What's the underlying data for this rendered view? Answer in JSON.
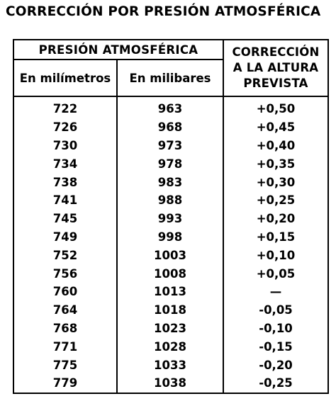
{
  "title": "CORRECCIÓN POR PRESIÓN ATMOSFÉRICA",
  "table": {
    "group_header": "PRESIÓN ATMOSFÉRICA",
    "correction_header": {
      "line1": "CORRECCIÓN",
      "line2": "A LA ALTURA",
      "line3": "PREVISTA"
    },
    "col_mm_header": "En milímetros",
    "col_mb_header": "En milibares",
    "rows": [
      {
        "mm": "722",
        "mb": "963",
        "corr": "+0,50"
      },
      {
        "mm": "726",
        "mb": "968",
        "corr": "+0,45"
      },
      {
        "mm": "730",
        "mb": "973",
        "corr": "+0,40"
      },
      {
        "mm": "734",
        "mb": "978",
        "corr": "+0,35"
      },
      {
        "mm": "738",
        "mb": "983",
        "corr": "+0,30"
      },
      {
        "mm": "741",
        "mb": "988",
        "corr": "+0,25"
      },
      {
        "mm": "745",
        "mb": "993",
        "corr": "+0,20"
      },
      {
        "mm": "749",
        "mb": "998",
        "corr": "+0,15"
      },
      {
        "mm": "752",
        "mb": "1003",
        "corr": "+0,10"
      },
      {
        "mm": "756",
        "mb": "1008",
        "corr": "+0,05"
      },
      {
        "mm": "760",
        "mb": "1013",
        "corr": "—"
      },
      {
        "mm": "764",
        "mb": "1018",
        "corr": "-0,05"
      },
      {
        "mm": "768",
        "mb": "1023",
        "corr": "-0,10"
      },
      {
        "mm": "771",
        "mb": "1028",
        "corr": "-0,15"
      },
      {
        "mm": "775",
        "mb": "1033",
        "corr": "-0,20"
      },
      {
        "mm": "779",
        "mb": "1038",
        "corr": "-0,25"
      }
    ]
  }
}
